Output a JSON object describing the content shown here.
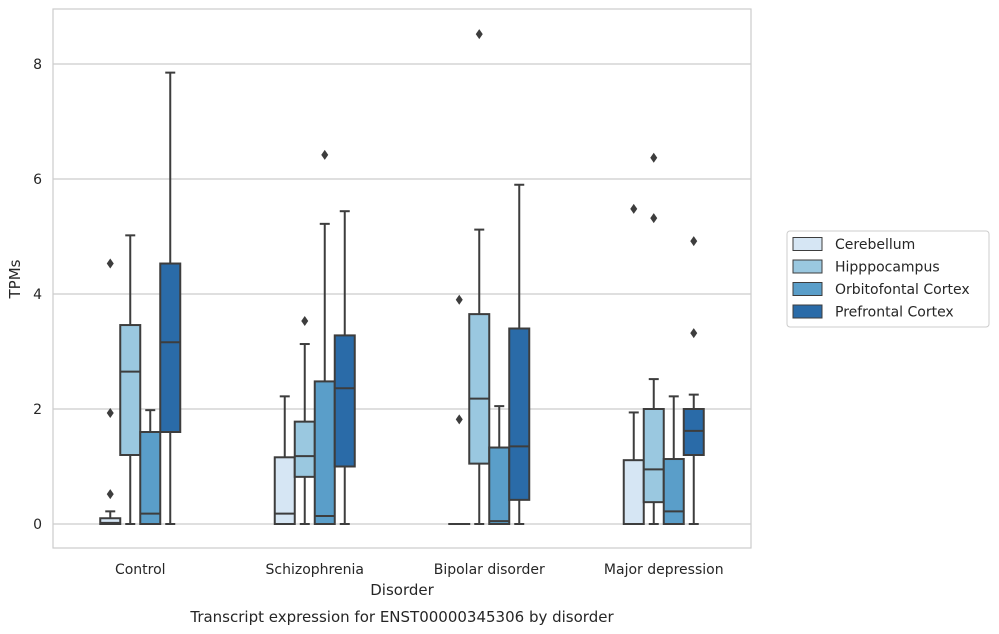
{
  "chart_data": {
    "type": "box",
    "title": "Transcript expression for ENST00000345306 by disorder",
    "xlabel": "Disorder",
    "ylabel": "TPMs",
    "ylim": [
      -0.42,
      8.95
    ],
    "yticks": [
      "0",
      "2",
      "4",
      "6",
      "8"
    ],
    "grid": "horizontal",
    "legend_position": "right",
    "categories": [
      "Control",
      "Schizophrenia",
      "Bipolar disorder",
      "Major depression"
    ],
    "series": [
      {
        "name": "Cerebellum",
        "color": "#d6e6f4",
        "boxes": [
          {
            "q1": 0.0,
            "median": 0.02,
            "q3": 0.1,
            "whisker_low": 0.0,
            "whisker_high": 0.22,
            "outliers": [
              0.52,
              1.93,
              4.53
            ]
          },
          {
            "q1": 0.0,
            "median": 0.18,
            "q3": 1.16,
            "whisker_low": 0.0,
            "whisker_high": 2.22,
            "outliers": []
          },
          {
            "q1": 0.0,
            "median": 0.0,
            "q3": 0.0,
            "whisker_low": 0.0,
            "whisker_high": 0.0,
            "outliers": [
              1.82,
              3.9
            ]
          },
          {
            "q1": 0.0,
            "median": 0.0,
            "q3": 1.11,
            "whisker_low": 0.0,
            "whisker_high": 1.94,
            "outliers": [
              5.48
            ]
          }
        ]
      },
      {
        "name": "Hipppocampus",
        "color": "#9ac8e0",
        "boxes": [
          {
            "q1": 1.2,
            "median": 2.65,
            "q3": 3.46,
            "whisker_low": 0.0,
            "whisker_high": 5.02,
            "outliers": []
          },
          {
            "q1": 0.82,
            "median": 1.18,
            "q3": 1.78,
            "whisker_low": 0.0,
            "whisker_high": 3.13,
            "outliers": [
              3.53
            ]
          },
          {
            "q1": 1.05,
            "median": 2.18,
            "q3": 3.65,
            "whisker_low": 0.0,
            "whisker_high": 5.12,
            "outliers": [
              8.52
            ]
          },
          {
            "q1": 0.38,
            "median": 0.95,
            "q3": 2.0,
            "whisker_low": 0.0,
            "whisker_high": 2.52,
            "outliers": [
              5.32,
              6.37
            ]
          }
        ]
      },
      {
        "name": "Orbitofontal Cortex",
        "color": "#5a9ec9",
        "boxes": [
          {
            "q1": 0.0,
            "median": 0.18,
            "q3": 1.6,
            "whisker_low": 0.0,
            "whisker_high": 1.98,
            "outliers": []
          },
          {
            "q1": 0.0,
            "median": 0.14,
            "q3": 2.48,
            "whisker_low": 0.0,
            "whisker_high": 5.22,
            "outliers": [
              6.42
            ]
          },
          {
            "q1": 0.0,
            "median": 0.05,
            "q3": 1.33,
            "whisker_low": 0.0,
            "whisker_high": 2.05,
            "outliers": []
          },
          {
            "q1": 0.0,
            "median": 0.22,
            "q3": 1.13,
            "whisker_low": 0.0,
            "whisker_high": 2.22,
            "outliers": []
          }
        ]
      },
      {
        "name": "Prefrontal Cortex",
        "color": "#2a6ba8",
        "boxes": [
          {
            "q1": 1.6,
            "median": 3.16,
            "q3": 4.53,
            "whisker_low": 0.0,
            "whisker_high": 7.85,
            "outliers": []
          },
          {
            "q1": 1.0,
            "median": 2.36,
            "q3": 3.28,
            "whisker_low": 0.0,
            "whisker_high": 5.44,
            "outliers": []
          },
          {
            "q1": 0.42,
            "median": 1.35,
            "q3": 3.4,
            "whisker_low": 0.0,
            "whisker_high": 5.9,
            "outliers": []
          },
          {
            "q1": 1.2,
            "median": 1.62,
            "q3": 2.0,
            "whisker_low": 0.0,
            "whisker_high": 2.25,
            "outliers": [
              3.32,
              4.92
            ]
          }
        ]
      }
    ]
  }
}
